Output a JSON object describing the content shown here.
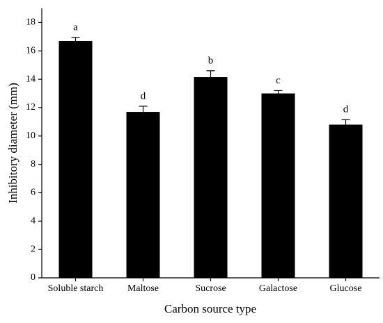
{
  "chart_data": {
    "type": "bar",
    "x_label": "Carbon source type",
    "y_label": "Inhibitory diameter (mm)",
    "categories": [
      "Soluble starch",
      "Maltose",
      "Sucrose",
      "Galactose",
      "Glucose"
    ],
    "values": [
      16.7,
      11.7,
      14.15,
      13.0,
      10.8
    ],
    "errors": [
      0.25,
      0.4,
      0.45,
      0.2,
      0.35
    ],
    "annotations": [
      "a",
      "d",
      "b",
      "c",
      "d"
    ],
    "color": "#000000",
    "ylim": [
      0,
      19
    ],
    "yticks": [
      0,
      2,
      4,
      6,
      8,
      10,
      12,
      14,
      16,
      18
    ],
    "grid": false
  }
}
